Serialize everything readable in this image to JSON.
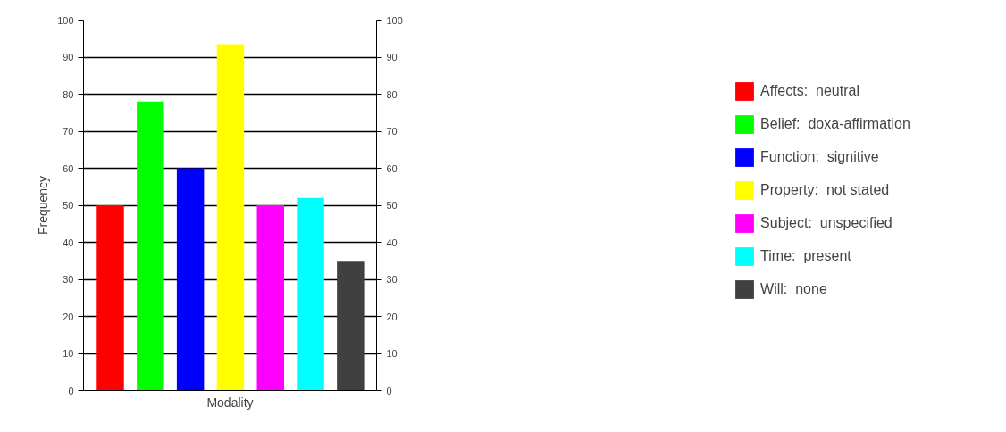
{
  "chart_data": {
    "type": "bar",
    "xlabel": "Modality",
    "ylabel": "Frequency",
    "categories": [
      null
    ],
    "series": [
      {
        "name": "Affects:  neutral",
        "color": "#ff0000",
        "values": [
          50
        ]
      },
      {
        "name": "Belief:  doxa-affirmation",
        "color": "#00ff00",
        "values": [
          78
        ]
      },
      {
        "name": "Function:  signitive",
        "color": "#0000ff",
        "values": [
          60
        ]
      },
      {
        "name": "Property:  not stated",
        "color": "#ffff00",
        "values": [
          93.5
        ]
      },
      {
        "name": "Subject:  unspecified",
        "color": "#ff00ff",
        "values": [
          50
        ]
      },
      {
        "name": "Time:  present",
        "color": "#00ffff",
        "values": [
          52
        ]
      },
      {
        "name": "Will:  none",
        "color": "#404040",
        "values": [
          35
        ]
      }
    ],
    "ylim": [
      0,
      100
    ],
    "yticks": [
      0,
      10,
      20,
      30,
      40,
      50,
      60,
      70,
      80,
      90,
      100
    ],
    "y2lim": [
      0,
      100
    ],
    "y2ticks": [
      0,
      10,
      20,
      30,
      40,
      50,
      60,
      70,
      80,
      90,
      100
    ],
    "grid": "y",
    "legend": "right"
  }
}
